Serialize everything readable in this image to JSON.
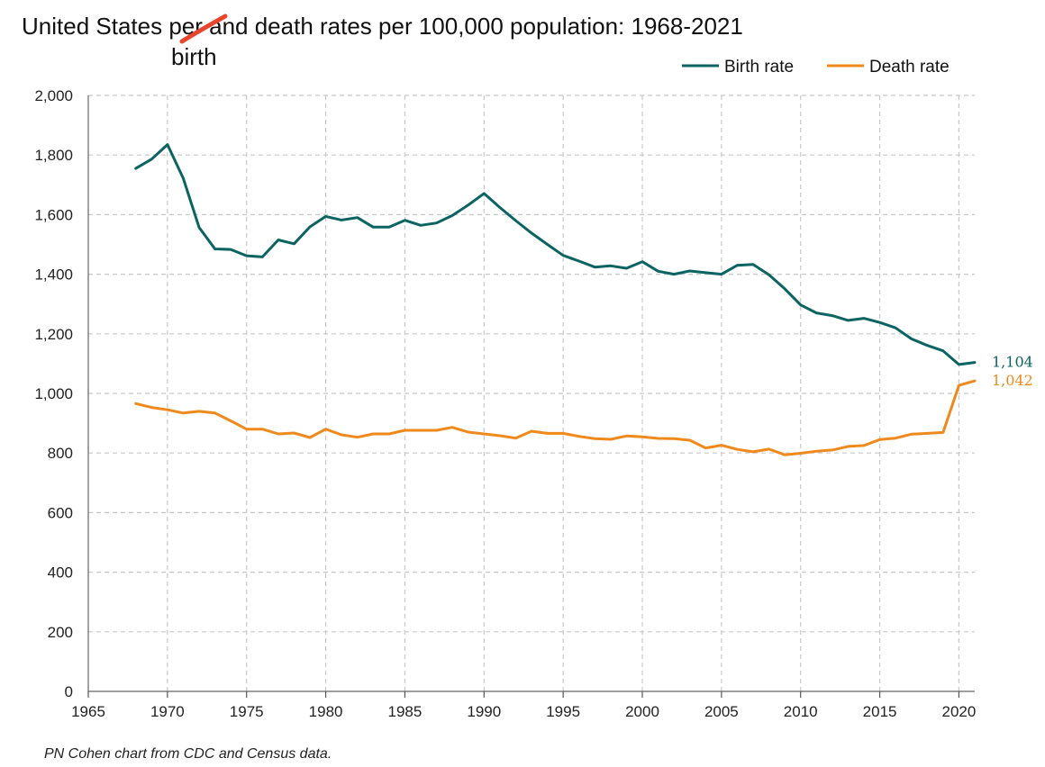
{
  "chart_data": {
    "type": "line",
    "title": "United States per and death rates per 100,000 population: 1968-2021",
    "title_parts": {
      "before": "United States ",
      "struck": "per",
      "after": " and death rates per 100,000 population: 1968-2021"
    },
    "handwritten_correction": "birth",
    "xlabel": "",
    "ylabel": "",
    "xlim": [
      1965,
      2021
    ],
    "ylim": [
      0,
      2000
    ],
    "x_ticks": [
      1965,
      1970,
      1975,
      1980,
      1985,
      1990,
      1995,
      2000,
      2005,
      2010,
      2015,
      2020
    ],
    "y_ticks": [
      0,
      200,
      400,
      600,
      800,
      1000,
      1200,
      1400,
      1600,
      1800,
      2000
    ],
    "y_tick_labels": [
      "0",
      "200",
      "400",
      "600",
      "800",
      "1,000",
      "1,200",
      "1,400",
      "1,600",
      "1,800",
      "2,000"
    ],
    "grid": true,
    "legend_position": "top-right",
    "x": [
      1968,
      1969,
      1970,
      1971,
      1972,
      1973,
      1974,
      1975,
      1976,
      1977,
      1978,
      1979,
      1980,
      1981,
      1982,
      1983,
      1984,
      1985,
      1986,
      1987,
      1988,
      1989,
      1990,
      1991,
      1992,
      1993,
      1994,
      1995,
      1996,
      1997,
      1998,
      1999,
      2000,
      2001,
      2002,
      2003,
      2004,
      2005,
      2006,
      2007,
      2008,
      2009,
      2010,
      2011,
      2012,
      2013,
      2014,
      2015,
      2016,
      2017,
      2018,
      2019,
      2020,
      2021
    ],
    "series": [
      {
        "name": "Birth rate",
        "color": "#0b6461",
        "end_label": "1,104",
        "values": [
          1755,
          1786,
          1835,
          1722,
          1557,
          1485,
          1483,
          1462,
          1458,
          1515,
          1502,
          1559,
          1594,
          1582,
          1590,
          1558,
          1558,
          1581,
          1564,
          1572,
          1597,
          1632,
          1671,
          1624,
          1580,
          1538,
          1500,
          1463,
          1444,
          1424,
          1428,
          1420,
          1442,
          1410,
          1400,
          1411,
          1405,
          1400,
          1430,
          1433,
          1398,
          1351,
          1297,
          1270,
          1261,
          1245,
          1252,
          1238,
          1220,
          1183,
          1161,
          1143,
          1097,
          1104
        ]
      },
      {
        "name": "Death rate",
        "color": "#f0891c",
        "end_label": "1,042",
        "values": [
          966,
          953,
          945,
          934,
          940,
          934,
          908,
          880,
          880,
          864,
          867,
          852,
          880,
          861,
          853,
          864,
          864,
          876,
          876,
          876,
          886,
          870,
          864,
          858,
          850,
          873,
          866,
          866,
          856,
          848,
          846,
          857,
          854,
          849,
          848,
          843,
          817,
          826,
          812,
          804,
          813,
          794,
          799,
          806,
          810,
          822,
          825,
          845,
          850,
          863,
          866,
          869,
          1027,
          1042
        ]
      }
    ],
    "source_note": "PN Cohen chart from CDC and Census data."
  }
}
